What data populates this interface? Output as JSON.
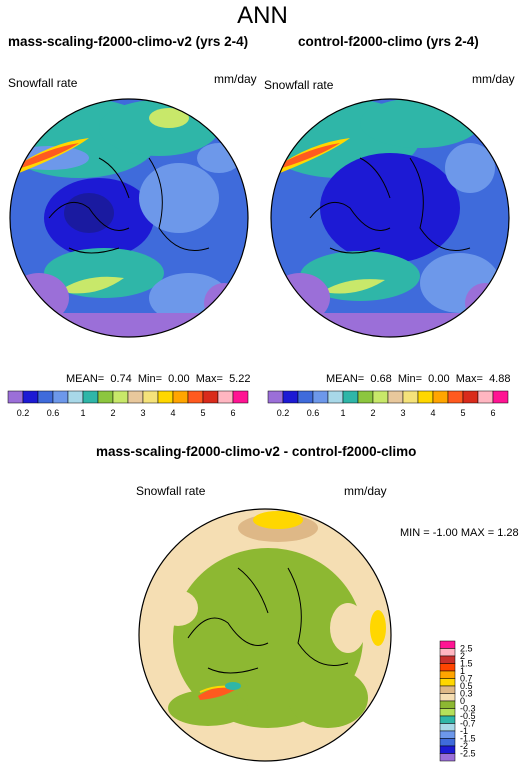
{
  "title": "ANN",
  "panels": [
    {
      "title": "mass-scaling-f2000-climo-v2 (yrs 2-4)",
      "variable": "Snowfall rate",
      "units": "mm/day",
      "mean_label": "MEAN=",
      "mean": "0.74",
      "min_label": "Min=",
      "min": "0.00",
      "max_label": "Max=",
      "max": "5.22"
    },
    {
      "title": "control-f2000-climo (yrs 2-4)",
      "variable": "Snowfall rate",
      "units": "mm/day",
      "mean_label": "MEAN=",
      "mean": "0.68",
      "min_label": "Min=",
      "min": "0.00",
      "max_label": "Max=",
      "max": "4.88"
    }
  ],
  "colorbar": {
    "colors": [
      "#9b6fd8",
      "#1d1ad4",
      "#3f6bdb",
      "#6d98ea",
      "#a8d8e8",
      "#2fb6a8",
      "#8cc63f",
      "#c8e86a",
      "#e8c89c",
      "#f5e27a",
      "#ffd700",
      "#ffa500",
      "#ff5a1f",
      "#d92b1b",
      "#ffb6c1",
      "#ff1493"
    ],
    "tick_labels": [
      "0.2",
      "0.6",
      "1",
      "2",
      "3",
      "4",
      "5",
      "6"
    ]
  },
  "diff": {
    "title": "mass-scaling-f2000-climo-v2 - control-f2000-climo",
    "variable": "Snowfall rate",
    "units": "mm/day",
    "min_label": "MIN =",
    "min": "-1.00",
    "max_label": "MAX =",
    "max": "1.28",
    "colors": [
      "#ff1493",
      "#ffb6c1",
      "#c9302c",
      "#ff4500",
      "#ffa500",
      "#ffd700",
      "#deb887",
      "#f5deb3",
      "#8db832",
      "#b5e05a",
      "#2fb6a8",
      "#a8d8e8",
      "#6d98ea",
      "#3f6bdb",
      "#1d1ad4",
      "#9b6fd8"
    ],
    "levels": [
      "2.5",
      "2",
      "1.5",
      "1",
      "0.7",
      "0.5",
      "0.3",
      "0",
      "-0.3",
      "-0.5",
      "-0.7",
      "-1",
      "-1.5",
      "-2",
      "-2.5"
    ]
  },
  "colors": {
    "ocean_base": "#3f6bdb",
    "land_low": "#2a3fd0",
    "diff_neg": "#8db832",
    "diff_pos": "#f5deb3"
  }
}
